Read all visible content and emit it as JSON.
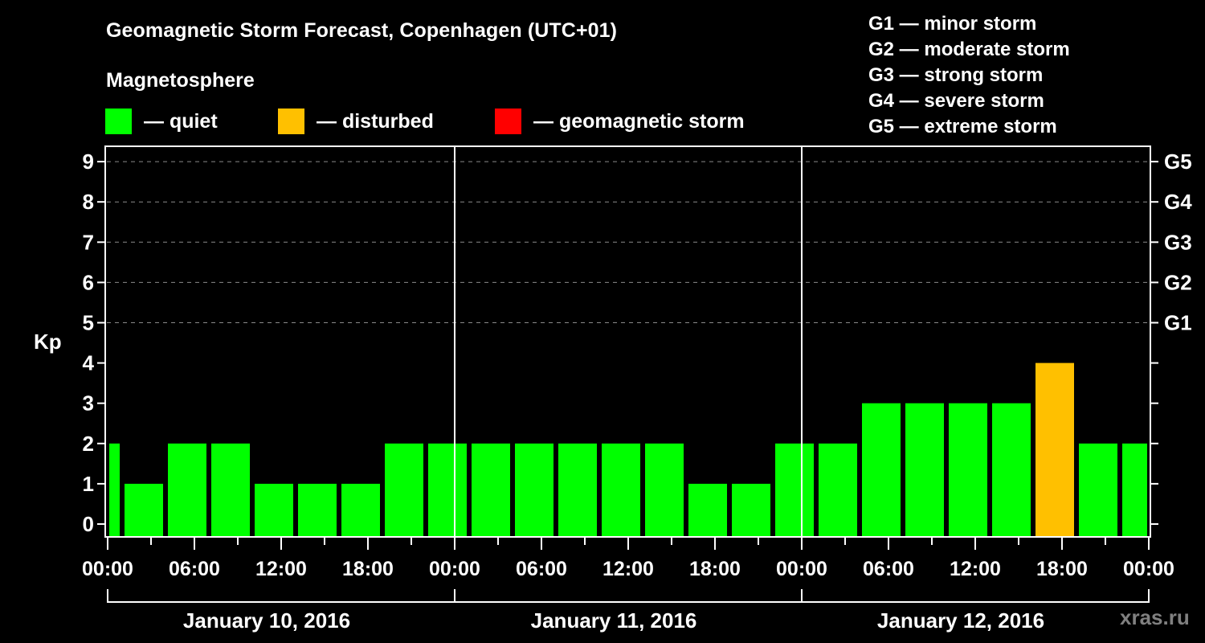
{
  "header": {
    "title": "Geomagnetic Storm Forecast, Copenhagen (UTC+01)",
    "subtitle": "Magnetosphere"
  },
  "legend": [
    {
      "label": "— quiet",
      "color": "#00ff00"
    },
    {
      "label": "— disturbed",
      "color": "#ffc000"
    },
    {
      "label": "— geomagnetic storm",
      "color": "#ff0000"
    }
  ],
  "g_scale": [
    "G1 — minor storm",
    "G2 — moderate storm",
    "G3 — strong storm",
    "G4 — severe storm",
    "G5 — extreme storm"
  ],
  "watermark": "xras.ru",
  "chart_data": {
    "type": "bar",
    "title": "Geomagnetic Storm Forecast, Copenhagen (UTC+01)",
    "ylabel": "Kp",
    "ylim": [
      0,
      9
    ],
    "yticks": [
      "0",
      "1",
      "2",
      "3",
      "4",
      "5",
      "6",
      "7",
      "8",
      "9"
    ],
    "right_ticks": [
      {
        "kp": 5,
        "label": "G1"
      },
      {
        "kp": 6,
        "label": "G2"
      },
      {
        "kp": 7,
        "label": "G3"
      },
      {
        "kp": 8,
        "label": "G4"
      },
      {
        "kp": 9,
        "label": "G5"
      }
    ],
    "grid": "dashed horizontal at Kp 5-9",
    "xlim_hours": [
      0,
      72
    ],
    "xtick_labels": [
      "00:00",
      "06:00",
      "12:00",
      "18:00",
      "00:00",
      "06:00",
      "12:00",
      "18:00",
      "00:00",
      "06:00",
      "12:00",
      "18:00",
      "00:00"
    ],
    "days": [
      "January 10, 2016",
      "January 11, 2016",
      "January 12, 2016"
    ],
    "series": [
      {
        "name": "Kp",
        "bars": [
          {
            "start": -2,
            "end": 1,
            "kp": 2,
            "status": "quiet"
          },
          {
            "start": 1,
            "end": 4,
            "kp": 1,
            "status": "quiet"
          },
          {
            "start": 4,
            "end": 7,
            "kp": 2,
            "status": "quiet"
          },
          {
            "start": 7,
            "end": 10,
            "kp": 2,
            "status": "quiet"
          },
          {
            "start": 10,
            "end": 13,
            "kp": 1,
            "status": "quiet"
          },
          {
            "start": 13,
            "end": 16,
            "kp": 1,
            "status": "quiet"
          },
          {
            "start": 16,
            "end": 19,
            "kp": 1,
            "status": "quiet"
          },
          {
            "start": 19,
            "end": 22,
            "kp": 2,
            "status": "quiet"
          },
          {
            "start": 22,
            "end": 25,
            "kp": 2,
            "status": "quiet"
          },
          {
            "start": 25,
            "end": 28,
            "kp": 2,
            "status": "quiet"
          },
          {
            "start": 28,
            "end": 31,
            "kp": 2,
            "status": "quiet"
          },
          {
            "start": 31,
            "end": 34,
            "kp": 2,
            "status": "quiet"
          },
          {
            "start": 34,
            "end": 37,
            "kp": 2,
            "status": "quiet"
          },
          {
            "start": 37,
            "end": 40,
            "kp": 2,
            "status": "quiet"
          },
          {
            "start": 40,
            "end": 43,
            "kp": 1,
            "status": "quiet"
          },
          {
            "start": 43,
            "end": 46,
            "kp": 1,
            "status": "quiet"
          },
          {
            "start": 46,
            "end": 49,
            "kp": 2,
            "status": "quiet"
          },
          {
            "start": 49,
            "end": 52,
            "kp": 2,
            "status": "quiet"
          },
          {
            "start": 52,
            "end": 55,
            "kp": 3,
            "status": "quiet"
          },
          {
            "start": 55,
            "end": 58,
            "kp": 3,
            "status": "quiet"
          },
          {
            "start": 58,
            "end": 61,
            "kp": 3,
            "status": "quiet"
          },
          {
            "start": 61,
            "end": 64,
            "kp": 3,
            "status": "quiet"
          },
          {
            "start": 64,
            "end": 67,
            "kp": 4,
            "status": "disturbed"
          },
          {
            "start": 67,
            "end": 70,
            "kp": 2,
            "status": "quiet"
          },
          {
            "start": 70,
            "end": 73,
            "kp": 2,
            "status": "quiet"
          }
        ]
      }
    ],
    "status_colors": {
      "quiet": "#00ff00",
      "disturbed": "#ffc000",
      "storm": "#ff0000"
    }
  }
}
